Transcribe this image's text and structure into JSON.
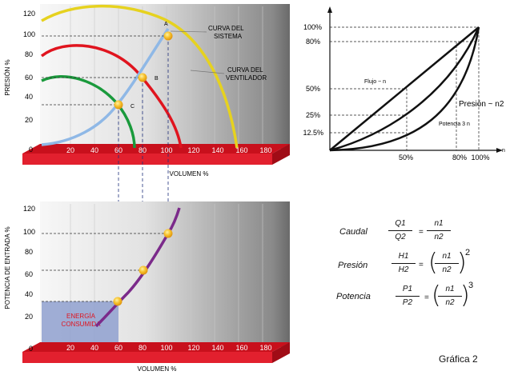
{
  "top_chart": {
    "y_ticks": [
      "0",
      "20",
      "40",
      "60",
      "80",
      "100",
      "120"
    ],
    "x_ticks": [
      "20",
      "40",
      "60",
      "80",
      "100",
      "120",
      "140",
      "160",
      "180"
    ],
    "ylabel": "PRESIÓN %",
    "xlabel": "VOLUMEN %",
    "point_labels": [
      "A",
      "B",
      "C"
    ],
    "curva_sistema": [
      "CURVA DEL",
      "SISTEMA"
    ],
    "curva_ventilador": [
      "CURVA DEL",
      "VENTILADOR"
    ]
  },
  "bottom_chart": {
    "y_ticks": [
      "0",
      "20",
      "40",
      "60",
      "80",
      "100",
      "120"
    ],
    "x_ticks": [
      "20",
      "40",
      "60",
      "80",
      "100",
      "120",
      "140",
      "160",
      "180"
    ],
    "ylabel": "POTENCIA DE ENTRADA %",
    "xlabel": "VOLUMEN %",
    "energy_label": [
      "ENERGÍA",
      "CONSUMIDA"
    ]
  },
  "law_chart": {
    "y_ticks": [
      "100%",
      "80%",
      "50%",
      "25%",
      "12.5%"
    ],
    "x_ticks": [
      "50%",
      "80%",
      "100%"
    ],
    "x_axis_letter": "n",
    "flujo_label": "Flujo ~ n",
    "presion_label": "Presión ~ n2",
    "potencia_label": "Potencia 3 n"
  },
  "formulas": {
    "caudal": {
      "label": "Caudal",
      "lhs_num": "Q1",
      "lhs_den": "Q2",
      "rhs_num": "n1",
      "rhs_den": "n2",
      "exp": ""
    },
    "presion": {
      "label": "Presión",
      "lhs_num": "H1",
      "lhs_den": "H2",
      "rhs_num": "n1",
      "rhs_den": "n2",
      "exp": "2"
    },
    "potencia": {
      "label": "Potencia",
      "lhs_num": "P1",
      "lhs_den": "P2",
      "rhs_num": "n1",
      "rhs_den": "n2",
      "exp": "3"
    },
    "equals": "="
  },
  "caption": "Gráfica 2",
  "colors": {
    "yellow": "#e6d21f",
    "red": "#e0141e",
    "green": "#1a9a3c",
    "blue": "#8fb8e6",
    "purple": "#7b2a8a",
    "platform": "#e2202e",
    "point": "#f4b21a",
    "energy_fill": "#8fa0cf"
  }
}
